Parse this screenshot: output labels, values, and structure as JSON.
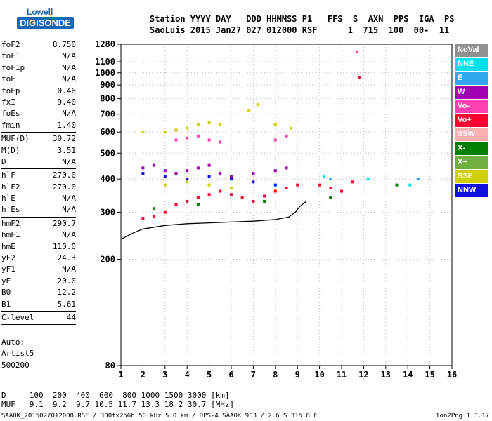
{
  "logo": {
    "line1": "Lowell",
    "line2": "DIGISONDE"
  },
  "header": {
    "line1": "Station YYYY DAY   DDD HHMMSS P1   FFS  S  AXN  PPS  IGA  PS",
    "line2": "SaoLuis 2015 Jan27 027 012000 RSF      1  715  100  00-  11"
  },
  "params": {
    "group1": [
      {
        "k": "foF2",
        "v": "8.750"
      },
      {
        "k": "foF1",
        "v": "N/A"
      },
      {
        "k": "foF1p",
        "v": "N/A"
      },
      {
        "k": "foE",
        "v": "N/A"
      },
      {
        "k": "foEp",
        "v": "0.46"
      },
      {
        "k": "fxI",
        "v": "9.40"
      },
      {
        "k": "foEs",
        "v": "N/A"
      },
      {
        "k": "fmin",
        "v": "1.40"
      }
    ],
    "group2": [
      {
        "k": "MUF(D)",
        "v": "30.72"
      },
      {
        "k": "M(D)",
        "v": "3.51"
      },
      {
        "k": "D",
        "v": "N/A"
      }
    ],
    "group3": [
      {
        "k": "h`F",
        "v": "270.0"
      },
      {
        "k": "h`F2",
        "v": "270.0"
      },
      {
        "k": "h`E",
        "v": "N/A"
      },
      {
        "k": "h`Es",
        "v": "N/A"
      }
    ],
    "group4": [
      {
        "k": "hmF2",
        "v": "290.7"
      },
      {
        "k": "hmF1",
        "v": "N/A"
      },
      {
        "k": "hmE",
        "v": "110.0"
      },
      {
        "k": "yF2",
        "v": "24.3"
      },
      {
        "k": "yF1",
        "v": "N/A"
      },
      {
        "k": "yE",
        "v": "20.0"
      },
      {
        "k": "B0",
        "v": "12.2"
      },
      {
        "k": "B1",
        "v": "5.61"
      }
    ],
    "group5": [
      {
        "k": "C-level",
        "v": "44"
      }
    ]
  },
  "auto": {
    "line1": "Auto:",
    "line2": "Artist5",
    "line3": "500200"
  },
  "legend": [
    {
      "label": "NoVal",
      "color": "#909090"
    },
    {
      "label": "NNE",
      "color": "#00e0f0"
    },
    {
      "label": "E",
      "color": "#30a8f0"
    },
    {
      "label": "W",
      "color": "#a000b0"
    },
    {
      "label": "Vo-",
      "color": "#ff40b0"
    },
    {
      "label": "Vo+",
      "color": "#ff0030"
    },
    {
      "label": "SSW",
      "color": "#f8b0b0"
    },
    {
      "label": "X-",
      "color": "#008000"
    },
    {
      "label": "X+",
      "color": "#70b040"
    },
    {
      "label": "SSE",
      "color": "#d0d000"
    },
    {
      "label": "NNW",
      "color": "#1010e0"
    }
  ],
  "footer": {
    "line1": "D     100  200  400  600  800 1000 1500 3000 [km]",
    "line2": "MUF   9.1  9.2  9.7 10.5 11.7 13.3 18.2 30.7 [MHz]"
  },
  "bottom": {
    "info": "SAA0K_2015027012000.RSF / 300fx256h 50 kHz 5.0 km / DPS-4 SAA0K 903 / 2.6 S 315.8 E",
    "version": "Ion2Png 1.3.17"
  },
  "chart_data": {
    "type": "scatter",
    "title": "",
    "xlabel": "",
    "ylabel": "",
    "xlim": [
      1,
      16
    ],
    "ylim": [
      80,
      1280
    ],
    "y_scale": "log",
    "x_ticks": [
      1,
      2,
      3,
      4,
      5,
      6,
      7,
      8,
      9,
      10,
      11,
      12,
      13,
      14,
      15,
      16
    ],
    "y_ticks": [
      80,
      200,
      300,
      400,
      500,
      600,
      700,
      800,
      900,
      1000,
      1100,
      1280
    ],
    "grid": "dotted",
    "series": [
      {
        "name": "Vo+",
        "color": "#ff0030",
        "points": [
          [
            2.0,
            285
          ],
          [
            2.5,
            290
          ],
          [
            3.0,
            300
          ],
          [
            3.5,
            320
          ],
          [
            4.0,
            330
          ],
          [
            4.5,
            340
          ],
          [
            5.0,
            350
          ],
          [
            5.5,
            360
          ],
          [
            6.0,
            350
          ],
          [
            6.5,
            340
          ],
          [
            7.0,
            330
          ],
          [
            7.5,
            345
          ],
          [
            8.0,
            360
          ],
          [
            8.5,
            370
          ],
          [
            9.0,
            380
          ],
          [
            10.0,
            380
          ],
          [
            10.5,
            370
          ],
          [
            11.0,
            360
          ],
          [
            11.5,
            390
          ],
          [
            11.8,
            960
          ]
        ]
      },
      {
        "name": "W",
        "color": "#a000b0",
        "points": [
          [
            2.0,
            440
          ],
          [
            2.5,
            450
          ],
          [
            3.0,
            430
          ],
          [
            3.5,
            420
          ],
          [
            4.0,
            430
          ],
          [
            4.5,
            440
          ],
          [
            5.0,
            450
          ],
          [
            5.5,
            420
          ],
          [
            6.0,
            410
          ],
          [
            7.0,
            420
          ],
          [
            8.0,
            430
          ],
          [
            8.5,
            440
          ]
        ]
      },
      {
        "name": "SSE",
        "color": "#d0d000",
        "points": [
          [
            2.0,
            600
          ],
          [
            3.0,
            600
          ],
          [
            3.5,
            610
          ],
          [
            4.0,
            620
          ],
          [
            4.5,
            640
          ],
          [
            5.0,
            650
          ],
          [
            5.5,
            640
          ],
          [
            6.8,
            720
          ],
          [
            7.2,
            760
          ],
          [
            8.0,
            640
          ],
          [
            8.7,
            620
          ],
          [
            3.0,
            380
          ],
          [
            4.0,
            390
          ],
          [
            5.0,
            380
          ],
          [
            6.0,
            370
          ]
        ]
      },
      {
        "name": "Vo-",
        "color": "#ff40b0",
        "points": [
          [
            3.5,
            560
          ],
          [
            4.0,
            570
          ],
          [
            4.5,
            580
          ],
          [
            5.0,
            560
          ],
          [
            5.5,
            550
          ],
          [
            8.0,
            560
          ],
          [
            8.5,
            580
          ],
          [
            11.7,
            1200
          ]
        ]
      },
      {
        "name": "NNW",
        "color": "#1010e0",
        "points": [
          [
            2.0,
            420
          ],
          [
            3.0,
            410
          ],
          [
            4.0,
            400
          ],
          [
            5.0,
            410
          ],
          [
            6.0,
            400
          ],
          [
            7.0,
            390
          ],
          [
            8.0,
            380
          ]
        ]
      },
      {
        "name": "X-",
        "color": "#008000",
        "points": [
          [
            2.5,
            310
          ],
          [
            4.5,
            320
          ],
          [
            7.5,
            330
          ],
          [
            10.5,
            340
          ],
          [
            13.5,
            380
          ]
        ]
      },
      {
        "name": "NNE",
        "color": "#00e0f0",
        "points": [
          [
            10.2,
            410
          ],
          [
            12.2,
            400
          ],
          [
            14.1,
            380
          ]
        ]
      },
      {
        "name": "E",
        "color": "#30a8f0",
        "points": [
          [
            10.5,
            400
          ],
          [
            14.5,
            400
          ]
        ]
      }
    ],
    "profile": {
      "x": [
        1.0,
        1.5,
        2.0,
        3.0,
        4.0,
        5.0,
        6.0,
        7.0,
        8.0,
        8.6,
        8.9,
        9.1,
        9.4
      ],
      "y": [
        238,
        250,
        260,
        268,
        272,
        274,
        276,
        278,
        282,
        288,
        300,
        315,
        330
      ]
    }
  }
}
